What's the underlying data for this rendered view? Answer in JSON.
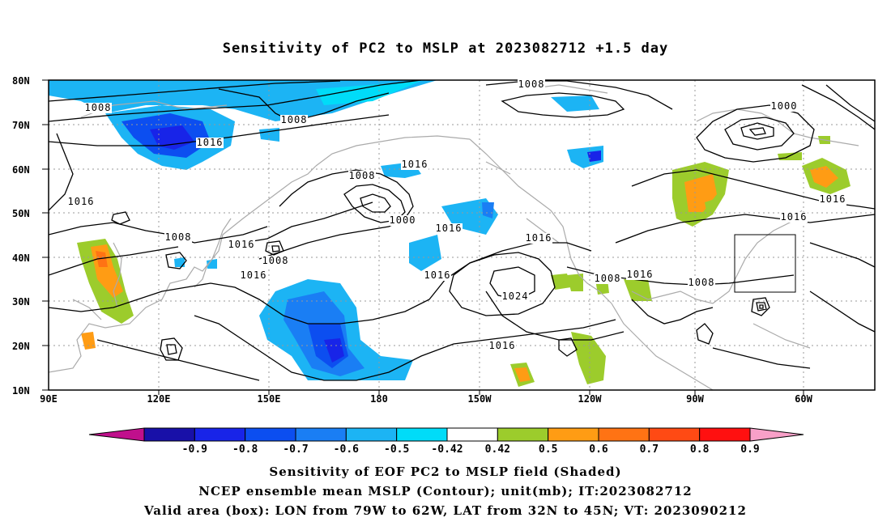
{
  "title": "Sensitivity of PC2 to MSLP at 2023082712 +1.5 day",
  "lat_labels": [
    "80N",
    "70N",
    "60N",
    "50N",
    "40N",
    "30N",
    "20N",
    "10N"
  ],
  "lon_labels": [
    "90E",
    "120E",
    "150E",
    "180",
    "150W",
    "120W",
    "90W",
    "60W"
  ],
  "contour_labels": [
    "1008",
    "1008",
    "1008",
    "1008",
    "1000",
    "1016",
    "1008",
    "1016",
    "1000",
    "1016",
    "1016",
    "1016",
    "1016",
    "1016",
    "1008",
    "1008",
    "1016",
    "1016",
    "1016",
    "1024",
    "1008",
    "1016",
    "1008",
    "1016"
  ],
  "colorbar": {
    "labels": [
      "-0.9",
      "-0.8",
      "-0.7",
      "-0.6",
      "-0.5",
      "-0.42",
      "0.42",
      "0.5",
      "0.6",
      "0.7",
      "0.8",
      "0.9"
    ],
    "colors": [
      "#c0108c",
      "#1810a8",
      "#1824e8",
      "#0c4ef0",
      "#1a7ef4",
      "#1cb4f4",
      "#00dcf8",
      "#ffffff",
      "#9ccc2c",
      "#ff9c14",
      "#ff7314",
      "#ff4a14",
      "#ff1010",
      "#f8a0c8"
    ]
  },
  "captions": [
    "Sensitivity of EOF PC2 to MSLP field (Shaded)",
    "NCEP ensemble mean MSLP (Contour); unit(mb); IT:2023082712",
    "Valid area (box): LON from 79W to 62W, LAT from 32N to 45N; VT: 2023090212"
  ]
}
